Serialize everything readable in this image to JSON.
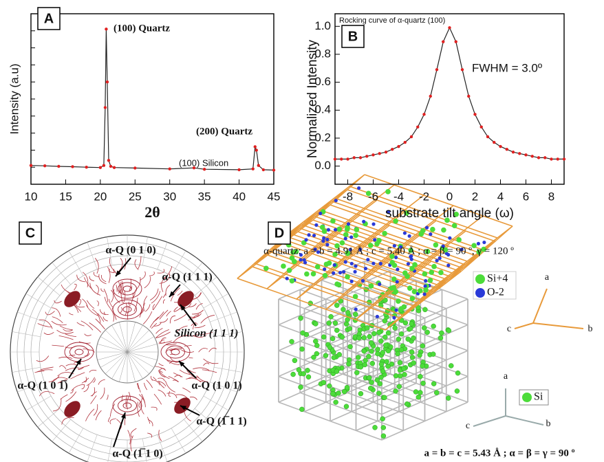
{
  "chart_data": [
    {
      "type": "line",
      "panel_label": "A",
      "x_label": "2θ",
      "y_label": "Intensity (a.u)",
      "xlim": [
        10,
        45
      ],
      "xticks": [
        10,
        15,
        20,
        25,
        30,
        35,
        40,
        45
      ],
      "ylim": [
        0,
        100
      ],
      "annotations": [
        "(100) Quartz",
        "(200) Quartz",
        "(100) Silicon"
      ],
      "series": [
        {
          "color": "#222222",
          "marker_color": "#e02020",
          "x": [
            10,
            12,
            14,
            16,
            18,
            20,
            20.5,
            20.7,
            20.85,
            21,
            21.2,
            21.5,
            22,
            25,
            30,
            33.5,
            35,
            40,
            42,
            42.3,
            42.5,
            42.8,
            43.5,
            45
          ],
          "values": [
            11,
            10.8,
            10.5,
            10.3,
            10,
            9.8,
            11,
            45,
            91,
            60,
            14,
            10.5,
            9.8,
            9.5,
            9,
            9.6,
            8.8,
            8.5,
            9,
            22,
            20,
            11,
            8.5,
            8.3
          ]
        }
      ]
    },
    {
      "type": "line",
      "panel_label": "B",
      "x_label": "substrate tilt angle (ω)",
      "y_label": "Normalized Intensity",
      "xlim": [
        -9,
        9
      ],
      "xticks": [
        -8,
        -6,
        -4,
        -2,
        0,
        2,
        4,
        6,
        8
      ],
      "ylim": [
        -0.13,
        1.09
      ],
      "yticks": [
        {
          "value": 0,
          "label": "0.0"
        },
        0.2,
        0.4,
        0.6,
        0.8,
        {
          "value": 1,
          "label": "1.0"
        }
      ],
      "annotations": [
        "Rocking curve of  α-quartz (100)",
        "FWHM = 3.0º"
      ],
      "series": [
        {
          "color": "#222222",
          "marker_color": "#e02020",
          "x": [
            -9,
            -8.5,
            -8,
            -7.5,
            -7,
            -6.5,
            -6,
            -5.5,
            -5,
            -4.5,
            -4,
            -3.5,
            -3,
            -2.5,
            -2,
            -1.5,
            -1,
            -0.5,
            0,
            0.5,
            1,
            1.5,
            2,
            2.5,
            3,
            3.5,
            4,
            4.5,
            5,
            5.5,
            6,
            6.5,
            7,
            7.5,
            8,
            8.5,
            9
          ],
          "values": [
            0.05,
            0.05,
            0.05,
            0.06,
            0.06,
            0.07,
            0.08,
            0.09,
            0.1,
            0.12,
            0.14,
            0.17,
            0.21,
            0.28,
            0.37,
            0.5,
            0.69,
            0.89,
            0.99,
            0.89,
            0.69,
            0.5,
            0.37,
            0.28,
            0.21,
            0.17,
            0.14,
            0.12,
            0.1,
            0.09,
            0.08,
            0.07,
            0.06,
            0.06,
            0.05,
            0.05,
            0.05
          ]
        }
      ]
    }
  ],
  "panel_c": {
    "label": "C",
    "annotations": [
      "α-Q (0 1 0)",
      "α-Q (1 1 1)",
      "Silicon (1 1 1)",
      "α-Q (1 0 1̅)",
      "α-Q (1 0 1)",
      "α-Q (1̅ 1 1)",
      "α-Q (1̅ 1 0)"
    ]
  },
  "panel_d": {
    "label": "D",
    "quartz_params": "α-quartz: a = b = 4.91 Å ; c = 5.40 Å ; α = β = 90 º, γ = 120 º",
    "quartz_legend": [
      "Si+4",
      "O-2"
    ],
    "quartz_axes": [
      "a",
      "c",
      "b"
    ],
    "silicon_legend": "Si",
    "silicon_axes": [
      "a",
      "c",
      "b"
    ],
    "silicon_params": "a = b = c = 5.43 Å ; α = β = γ = 90 º"
  }
}
